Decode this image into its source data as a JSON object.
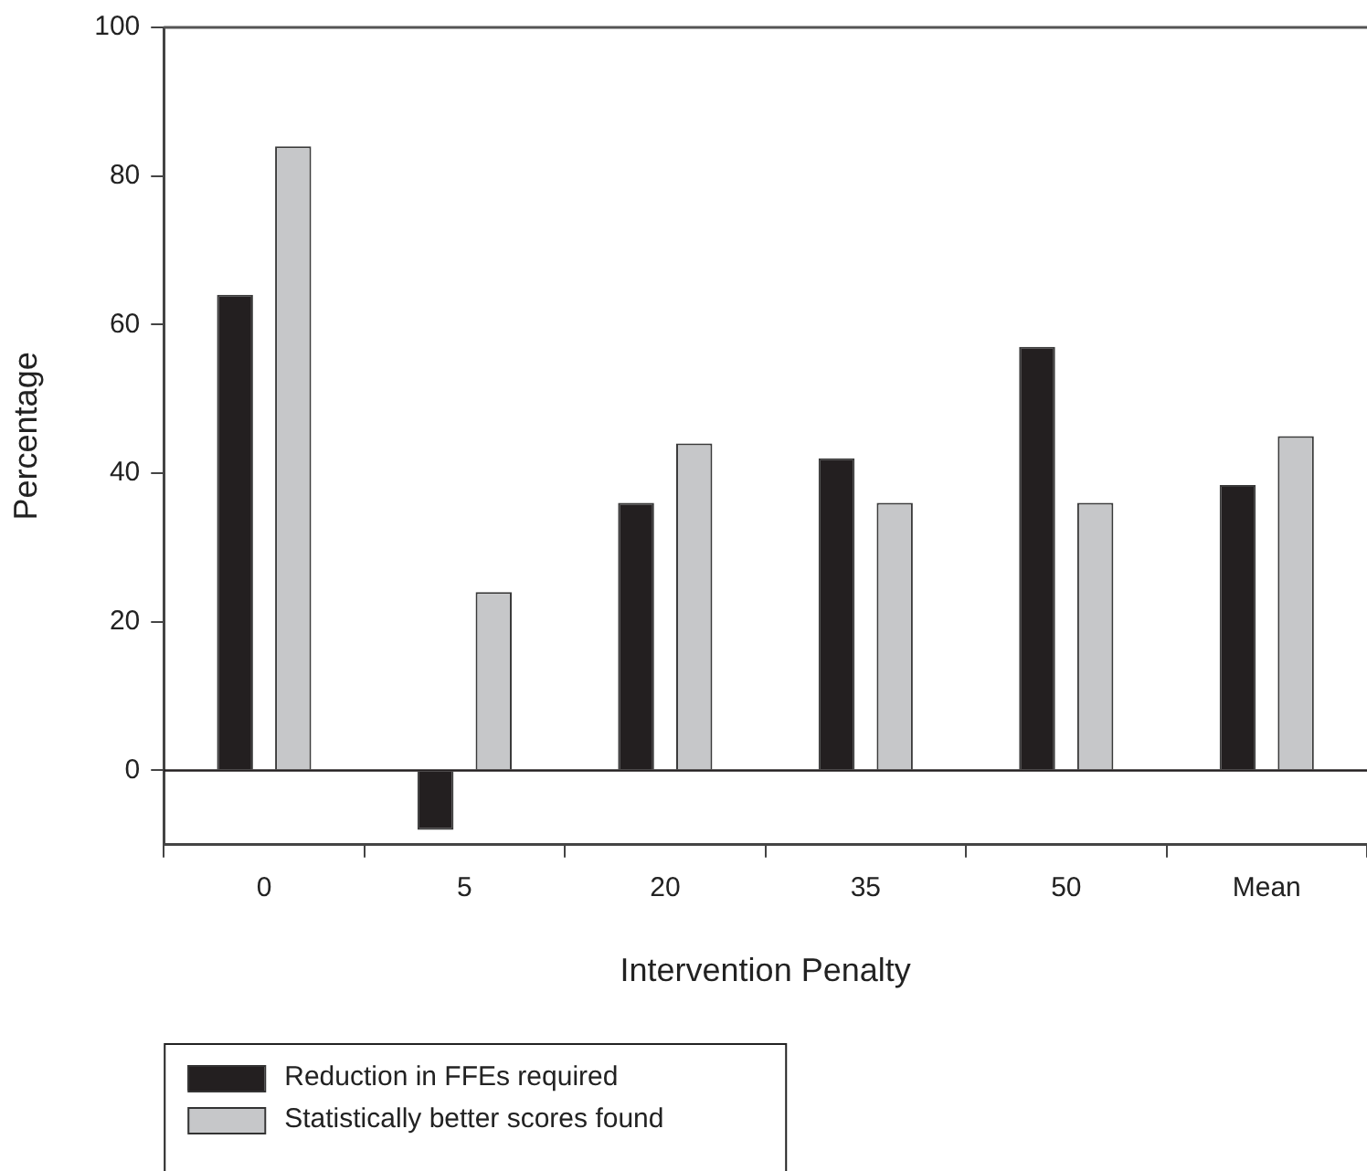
{
  "chart_data": {
    "type": "bar",
    "xlabel": "Intervention Penalty",
    "ylabel": "Percentage",
    "categories": [
      "0",
      "5",
      "20",
      "35",
      "50",
      "Mean"
    ],
    "series": [
      {
        "name": "Reduction in FFEs required",
        "color": "#231f20",
        "values": [
          64,
          -8,
          36,
          42,
          57,
          38.4
        ]
      },
      {
        "name": "Statistically better scores found",
        "color": "#c6c7c9",
        "values": [
          84,
          24,
          44,
          36,
          36,
          45
        ]
      }
    ],
    "ylim": [
      -10,
      100
    ],
    "yticks": [
      0,
      20,
      40,
      60,
      80,
      100
    ],
    "ref_lines": [
      {
        "axis": "y",
        "value": 0,
        "color": "#231f20"
      }
    ],
    "grid": false,
    "legend": "bottom"
  }
}
